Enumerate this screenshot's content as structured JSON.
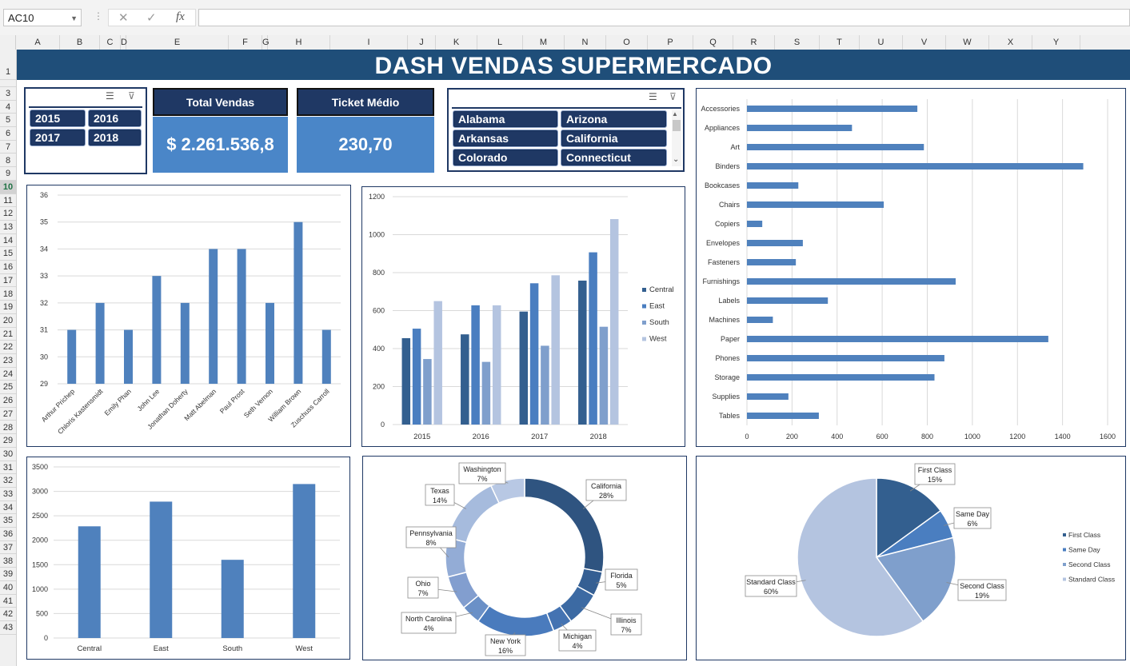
{
  "formula_bar": {
    "name_box": "AC10",
    "cancel_icon": "✕",
    "enter_icon": "✓",
    "fx_label": "fx",
    "formula": ""
  },
  "columns": [
    "A",
    "B",
    "C",
    "D",
    "E",
    "F",
    "G",
    "H",
    "I",
    "J",
    "K",
    "L",
    "M",
    "N",
    "O",
    "P",
    "Q",
    "R",
    "S",
    "T",
    "U",
    "V",
    "W",
    "X",
    "Y"
  ],
  "rows": [
    "1",
    "2",
    "3",
    "4",
    "5",
    "6",
    "7",
    "8",
    "9",
    "10",
    "11",
    "12",
    "13",
    "14",
    "15",
    "16",
    "17",
    "18",
    "19",
    "20",
    "21",
    "22",
    "23",
    "24",
    "25",
    "26",
    "27",
    "28",
    "29",
    "30",
    "31",
    "32",
    "33",
    "34",
    "35",
    "36",
    "37",
    "38",
    "39",
    "40",
    "41",
    "42",
    "43"
  ],
  "selected_row": "10",
  "title": "DASH VENDAS SUPERMERCADO",
  "year_slicer": {
    "items": [
      "2015",
      "2016",
      "2017",
      "2018"
    ]
  },
  "kpis": {
    "total_label": "Total Vendas",
    "total_value": "$ 2.261.536,8",
    "ticket_label": "Ticket Médio",
    "ticket_value": "230,70"
  },
  "state_slicer": {
    "items": [
      "Alabama",
      "Arizona",
      "Arkansas",
      "California",
      "Colorado",
      "Connecticut"
    ]
  },
  "colors": {
    "dark": "#1f4e79",
    "navy": "#1f3864",
    "bar": "#4f81bd",
    "s1": "#335f8f",
    "s2": "#4a7ec0",
    "s3": "#7f9fcc",
    "s4": "#b4c4e0"
  },
  "chart_data": [
    {
      "type": "bar",
      "id": "customers",
      "categories": [
        "Arthur Prichep",
        "Chloris Kastensmidt",
        "Emily Phan",
        "John Lee",
        "Jonathan Doherty",
        "Matt Abelman",
        "Paul Prost",
        "Seth Vernon",
        "William Brown",
        "Zuschuss Carroll"
      ],
      "values": [
        31,
        32,
        31,
        33,
        32,
        34,
        34,
        32,
        35,
        31
      ],
      "ylim": [
        29,
        36
      ],
      "yticks": [
        "29",
        "30",
        "31",
        "32",
        "33",
        "34",
        "35",
        "36"
      ]
    },
    {
      "type": "bar",
      "id": "regions_by_year",
      "categories": [
        "2015",
        "2016",
        "2017",
        "2018"
      ],
      "series": [
        {
          "name": "Central",
          "values": [
            455,
            475,
            595,
            758
          ]
        },
        {
          "name": "East",
          "values": [
            505,
            628,
            744,
            907
          ]
        },
        {
          "name": "South",
          "values": [
            345,
            330,
            415,
            515
          ]
        },
        {
          "name": "West",
          "values": [
            650,
            628,
            786,
            1082
          ]
        }
      ],
      "ylim": [
        0,
        1200
      ],
      "yticks": [
        "0",
        "200",
        "400",
        "600",
        "800",
        "1000",
        "1200"
      ]
    },
    {
      "type": "bar",
      "id": "subcategories",
      "orientation": "horizontal",
      "categories": [
        "Accessories",
        "Appliances",
        "Art",
        "Binders",
        "Bookcases",
        "Chairs",
        "Copiers",
        "Envelopes",
        "Fasteners",
        "Furnishings",
        "Labels",
        "Machines",
        "Paper",
        "Phones",
        "Storage",
        "Supplies",
        "Tables"
      ],
      "values": [
        756,
        466,
        785,
        1492,
        228,
        607,
        68,
        248,
        217,
        926,
        359,
        115,
        1337,
        876,
        832,
        184,
        319
      ],
      "xlim": [
        0,
        1600
      ],
      "xticks": [
        "0",
        "200",
        "400",
        "600",
        "800",
        "1000",
        "1200",
        "1400",
        "1600"
      ]
    },
    {
      "type": "bar",
      "id": "regions_total",
      "categories": [
        "Central",
        "East",
        "South",
        "West"
      ],
      "values": [
        2285,
        2790,
        1600,
        3150
      ],
      "ylim": [
        0,
        3500
      ],
      "yticks": [
        "0",
        "500",
        "1000",
        "1500",
        "2000",
        "2500",
        "3000",
        "3500"
      ]
    },
    {
      "type": "pie",
      "id": "states_donut",
      "donut": true,
      "slices": [
        {
          "label": "California",
          "pct": "28%",
          "value": 28
        },
        {
          "label": "Florida",
          "pct": "5%",
          "value": 5
        },
        {
          "label": "Illinois",
          "pct": "7%",
          "value": 7
        },
        {
          "label": "Michigan",
          "pct": "4%",
          "value": 4
        },
        {
          "label": "New York",
          "pct": "16%",
          "value": 16
        },
        {
          "label": "North Carolina",
          "pct": "4%",
          "value": 4
        },
        {
          "label": "Ohio",
          "pct": "7%",
          "value": 7
        },
        {
          "label": "Pennsylvania",
          "pct": "8%",
          "value": 8
        },
        {
          "label": "Texas",
          "pct": "14%",
          "value": 14
        },
        {
          "label": "Washington",
          "pct": "7%",
          "value": 7
        }
      ]
    },
    {
      "type": "pie",
      "id": "ship_mode",
      "slices": [
        {
          "label": "First Class",
          "pct": "15%",
          "value": 15
        },
        {
          "label": "Same Day",
          "pct": "6%",
          "value": 6
        },
        {
          "label": "Second Class",
          "pct": "19%",
          "value": 19
        },
        {
          "label": "Standard Class",
          "pct": "60%",
          "value": 60
        }
      ],
      "legend": [
        "First Class",
        "Same Day",
        "Second Class",
        "Standard Class"
      ],
      "legend_position": "right"
    }
  ]
}
